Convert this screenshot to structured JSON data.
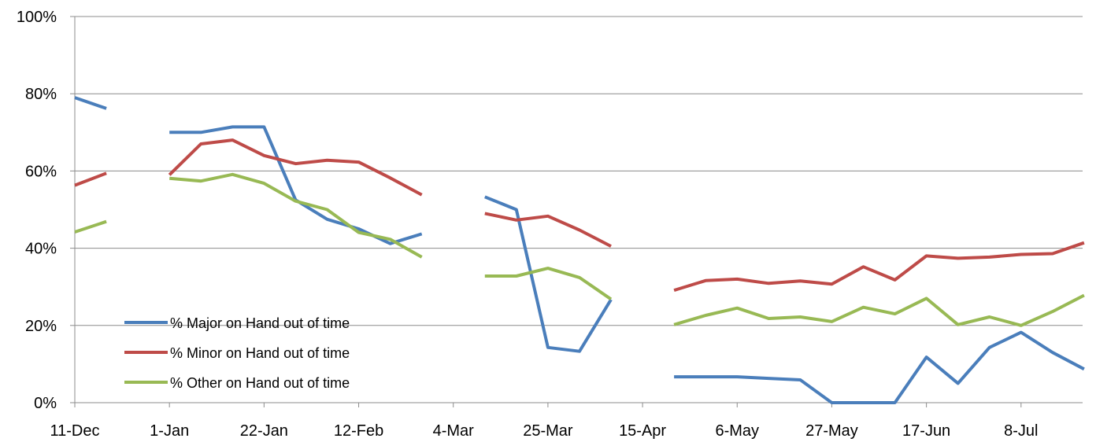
{
  "chart_data": {
    "type": "line",
    "title": "",
    "xlabel": "",
    "ylabel": "",
    "ylim": [
      0,
      100
    ],
    "y_ticks": [
      "0%",
      "20%",
      "40%",
      "60%",
      "80%",
      "100%"
    ],
    "x_ticks": [
      "11-Dec",
      "1-Jan",
      "22-Jan",
      "12-Feb",
      "4-Mar",
      "25-Mar",
      "15-Apr",
      "6-May",
      "27-May",
      "17-Jun",
      "8-Jul"
    ],
    "x_start": "2011-12-11",
    "grid": "horizontal",
    "legend_position": "bottom-left",
    "x": [
      "2011-12-11",
      "2011-12-18",
      "2011-12-25",
      "2012-01-01",
      "2012-01-08",
      "2012-01-15",
      "2012-01-22",
      "2012-01-29",
      "2012-02-05",
      "2012-02-12",
      "2012-02-19",
      "2012-02-26",
      "2012-03-04",
      "2012-03-11",
      "2012-03-18",
      "2012-03-25",
      "2012-04-01",
      "2012-04-08",
      "2012-04-15",
      "2012-04-22",
      "2012-04-29",
      "2012-05-06",
      "2012-05-13",
      "2012-05-20",
      "2012-05-27",
      "2012-06-03",
      "2012-06-10",
      "2012-06-17",
      "2012-06-24",
      "2012-07-01",
      "2012-07-08",
      "2012-07-15",
      "2012-07-22"
    ],
    "series": [
      {
        "name": "% Major on  Hand out of time",
        "color": "#4a7ebb",
        "values": [
          79,
          76.2,
          null,
          70,
          70,
          71.4,
          71.4,
          52.5,
          47.5,
          45,
          41.2,
          43.7,
          null,
          53.3,
          50,
          14.3,
          13.3,
          26.7,
          null,
          6.7,
          6.7,
          6.7,
          6.3,
          5.9,
          0,
          0,
          0,
          11.8,
          5,
          14.3,
          18.2,
          13,
          8.7
        ]
      },
      {
        "name": "% Minor on  Hand out of time",
        "color": "#be4b48",
        "values": [
          56.3,
          59.4,
          null,
          59,
          67,
          68,
          64,
          61.9,
          62.8,
          62.3,
          58.2,
          53.8,
          null,
          49,
          47.3,
          48.3,
          44.7,
          40.5,
          null,
          29.1,
          31.6,
          32,
          30.9,
          31.5,
          30.7,
          35.2,
          31.8,
          38,
          37.4,
          37.7,
          38.4,
          38.6,
          41.4
        ]
      },
      {
        "name": "% Other on  Hand out of time",
        "color": "#98b954",
        "values": [
          44.2,
          46.9,
          null,
          58.1,
          57.4,
          59.1,
          56.8,
          52.2,
          50,
          44.1,
          42.3,
          37.7,
          null,
          32.8,
          32.8,
          34.8,
          32.4,
          26.8,
          null,
          20.2,
          22.6,
          24.5,
          21.8,
          22.2,
          21,
          24.7,
          23,
          27,
          20.2,
          22.2,
          20,
          23.6,
          27.8
        ]
      }
    ]
  }
}
